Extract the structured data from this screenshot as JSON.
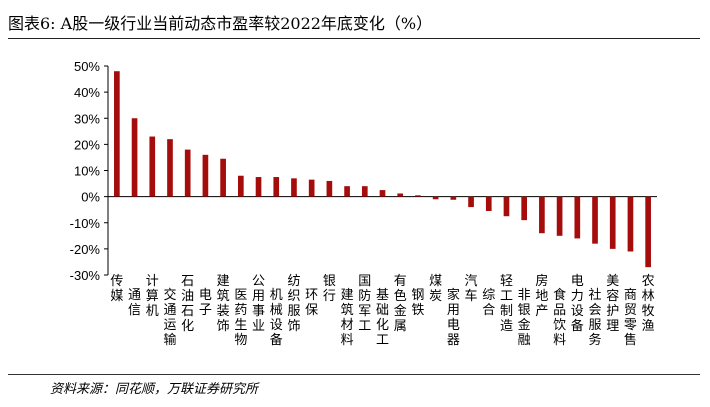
{
  "title": "图表6:  A股一级行业当前动态市盈率较2022年底变化（%）",
  "source": "资料来源：同花顺，万联证券研究所",
  "colors": {
    "bar": "#a50d0d",
    "axis": "#000000",
    "text": "#000000"
  },
  "chart_data": {
    "type": "bar",
    "categories": [
      "传媒",
      "通信",
      "计算机",
      "交通运输",
      "石油石化",
      "电子",
      "建筑装饰",
      "医药生物",
      "公用事业",
      "机械设备",
      "纺织服饰",
      "环保",
      "银行",
      "建筑材料",
      "国防军工",
      "基础化工",
      "有色金属",
      "钢铁",
      "煤炭",
      "家用电器",
      "汽车",
      "综合",
      "轻工制造",
      "非银金融",
      "房地产",
      "食品饮料",
      "电力设备",
      "社会服务",
      "美容护理",
      "商贸零售",
      "农林牧渔"
    ],
    "values": [
      48,
      30,
      23,
      22,
      18,
      16,
      14.5,
      8,
      7.5,
      7.5,
      7,
      6.5,
      6,
      4,
      4,
      2.5,
      1.2,
      0.5,
      -1,
      -1.2,
      -4,
      -5.5,
      -7.5,
      -9,
      -14,
      -15,
      -16,
      -18,
      -20,
      -21,
      -27
    ],
    "ylim": [
      -30,
      50
    ],
    "yticks": [
      "50%",
      "40%",
      "30%",
      "20%",
      "10%",
      "0%",
      "-10%",
      "-20%",
      "-30%"
    ],
    "ytick_values": [
      50,
      40,
      30,
      20,
      10,
      0,
      -10,
      -20,
      -30
    ],
    "legend": "none",
    "grid": false
  }
}
